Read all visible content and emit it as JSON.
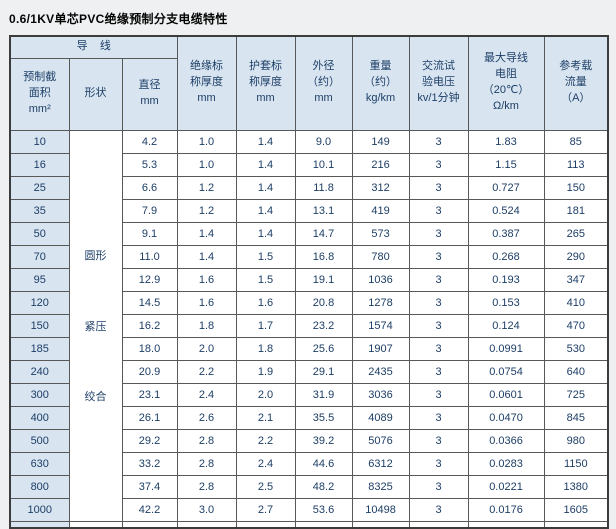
{
  "title": "0.6/1KV单芯PVC绝缘预制分支电缆特性",
  "colors": {
    "header_bg": "#d8e5f1",
    "text": "#1d3e66",
    "grid": "#585858",
    "page_bg": "#eef0f1"
  },
  "table": {
    "group_header": "导    线",
    "columns": {
      "area": [
        "预制截",
        "面积",
        "mm²"
      ],
      "shape": [
        "形状"
      ],
      "diameter": [
        "直径",
        "mm"
      ],
      "insulation": [
        "绝缘标",
        "称厚度",
        "mm"
      ],
      "sheath": [
        "护套标",
        "称厚度",
        "mm"
      ],
      "outer_diameter": [
        "外径",
        "（约）",
        "mm"
      ],
      "weight": [
        "重量",
        "（约）",
        "kg/km"
      ],
      "test_voltage": [
        "交流试",
        "验电压",
        "kv/1分钟"
      ],
      "resistance": [
        "最大导线",
        "电阻",
        "（20℃）",
        "Ω/km"
      ],
      "ampacity": [
        "参考载",
        "流量",
        "（A）"
      ]
    },
    "shape_labels": [
      "圆形",
      "紧压",
      "绞合"
    ],
    "rows": [
      [
        "10",
        "4.2",
        "1.0",
        "1.4",
        "9.0",
        "149",
        "3",
        "1.83",
        "85"
      ],
      [
        "16",
        "5.3",
        "1.0",
        "1.4",
        "10.1",
        "216",
        "3",
        "1.15",
        "113"
      ],
      [
        "25",
        "6.6",
        "1.2",
        "1.4",
        "11.8",
        "312",
        "3",
        "0.727",
        "150"
      ],
      [
        "35",
        "7.9",
        "1.2",
        "1.4",
        "13.1",
        "419",
        "3",
        "0.524",
        "181"
      ],
      [
        "50",
        "9.1",
        "1.4",
        "1.4",
        "14.7",
        "573",
        "3",
        "0.387",
        "265"
      ],
      [
        "70",
        "11.0",
        "1.4",
        "1.5",
        "16.8",
        "780",
        "3",
        "0.268",
        "290"
      ],
      [
        "95",
        "12.9",
        "1.6",
        "1.5",
        "19.1",
        "1036",
        "3",
        "0.193",
        "347"
      ],
      [
        "120",
        "14.5",
        "1.6",
        "1.6",
        "20.8",
        "1278",
        "3",
        "0.153",
        "410"
      ],
      [
        "150",
        "16.2",
        "1.8",
        "1.7",
        "23.2",
        "1574",
        "3",
        "0.124",
        "470"
      ],
      [
        "185",
        "18.0",
        "2.0",
        "1.8",
        "25.6",
        "1907",
        "3",
        "0.0991",
        "530"
      ],
      [
        "240",
        "20.9",
        "2.2",
        "1.9",
        "29.1",
        "2435",
        "3",
        "0.0754",
        "640"
      ],
      [
        "300",
        "23.1",
        "2.4",
        "2.0",
        "31.9",
        "3036",
        "3",
        "0.0601",
        "725"
      ],
      [
        "400",
        "26.1",
        "2.6",
        "2.1",
        "35.5",
        "4089",
        "3",
        "0.0470",
        "845"
      ],
      [
        "500",
        "29.2",
        "2.8",
        "2.2",
        "39.2",
        "5076",
        "3",
        "0.0366",
        "980"
      ],
      [
        "630",
        "33.2",
        "2.8",
        "2.4",
        "44.6",
        "6312",
        "3",
        "0.0283",
        "1150"
      ],
      [
        "800",
        "37.4",
        "2.8",
        "2.5",
        "48.2",
        "8325",
        "3",
        "0.0221",
        "1380"
      ],
      [
        "1000",
        "42.2",
        "3.0",
        "2.7",
        "53.6",
        "10498",
        "3",
        "0.0176",
        "1605"
      ]
    ]
  }
}
